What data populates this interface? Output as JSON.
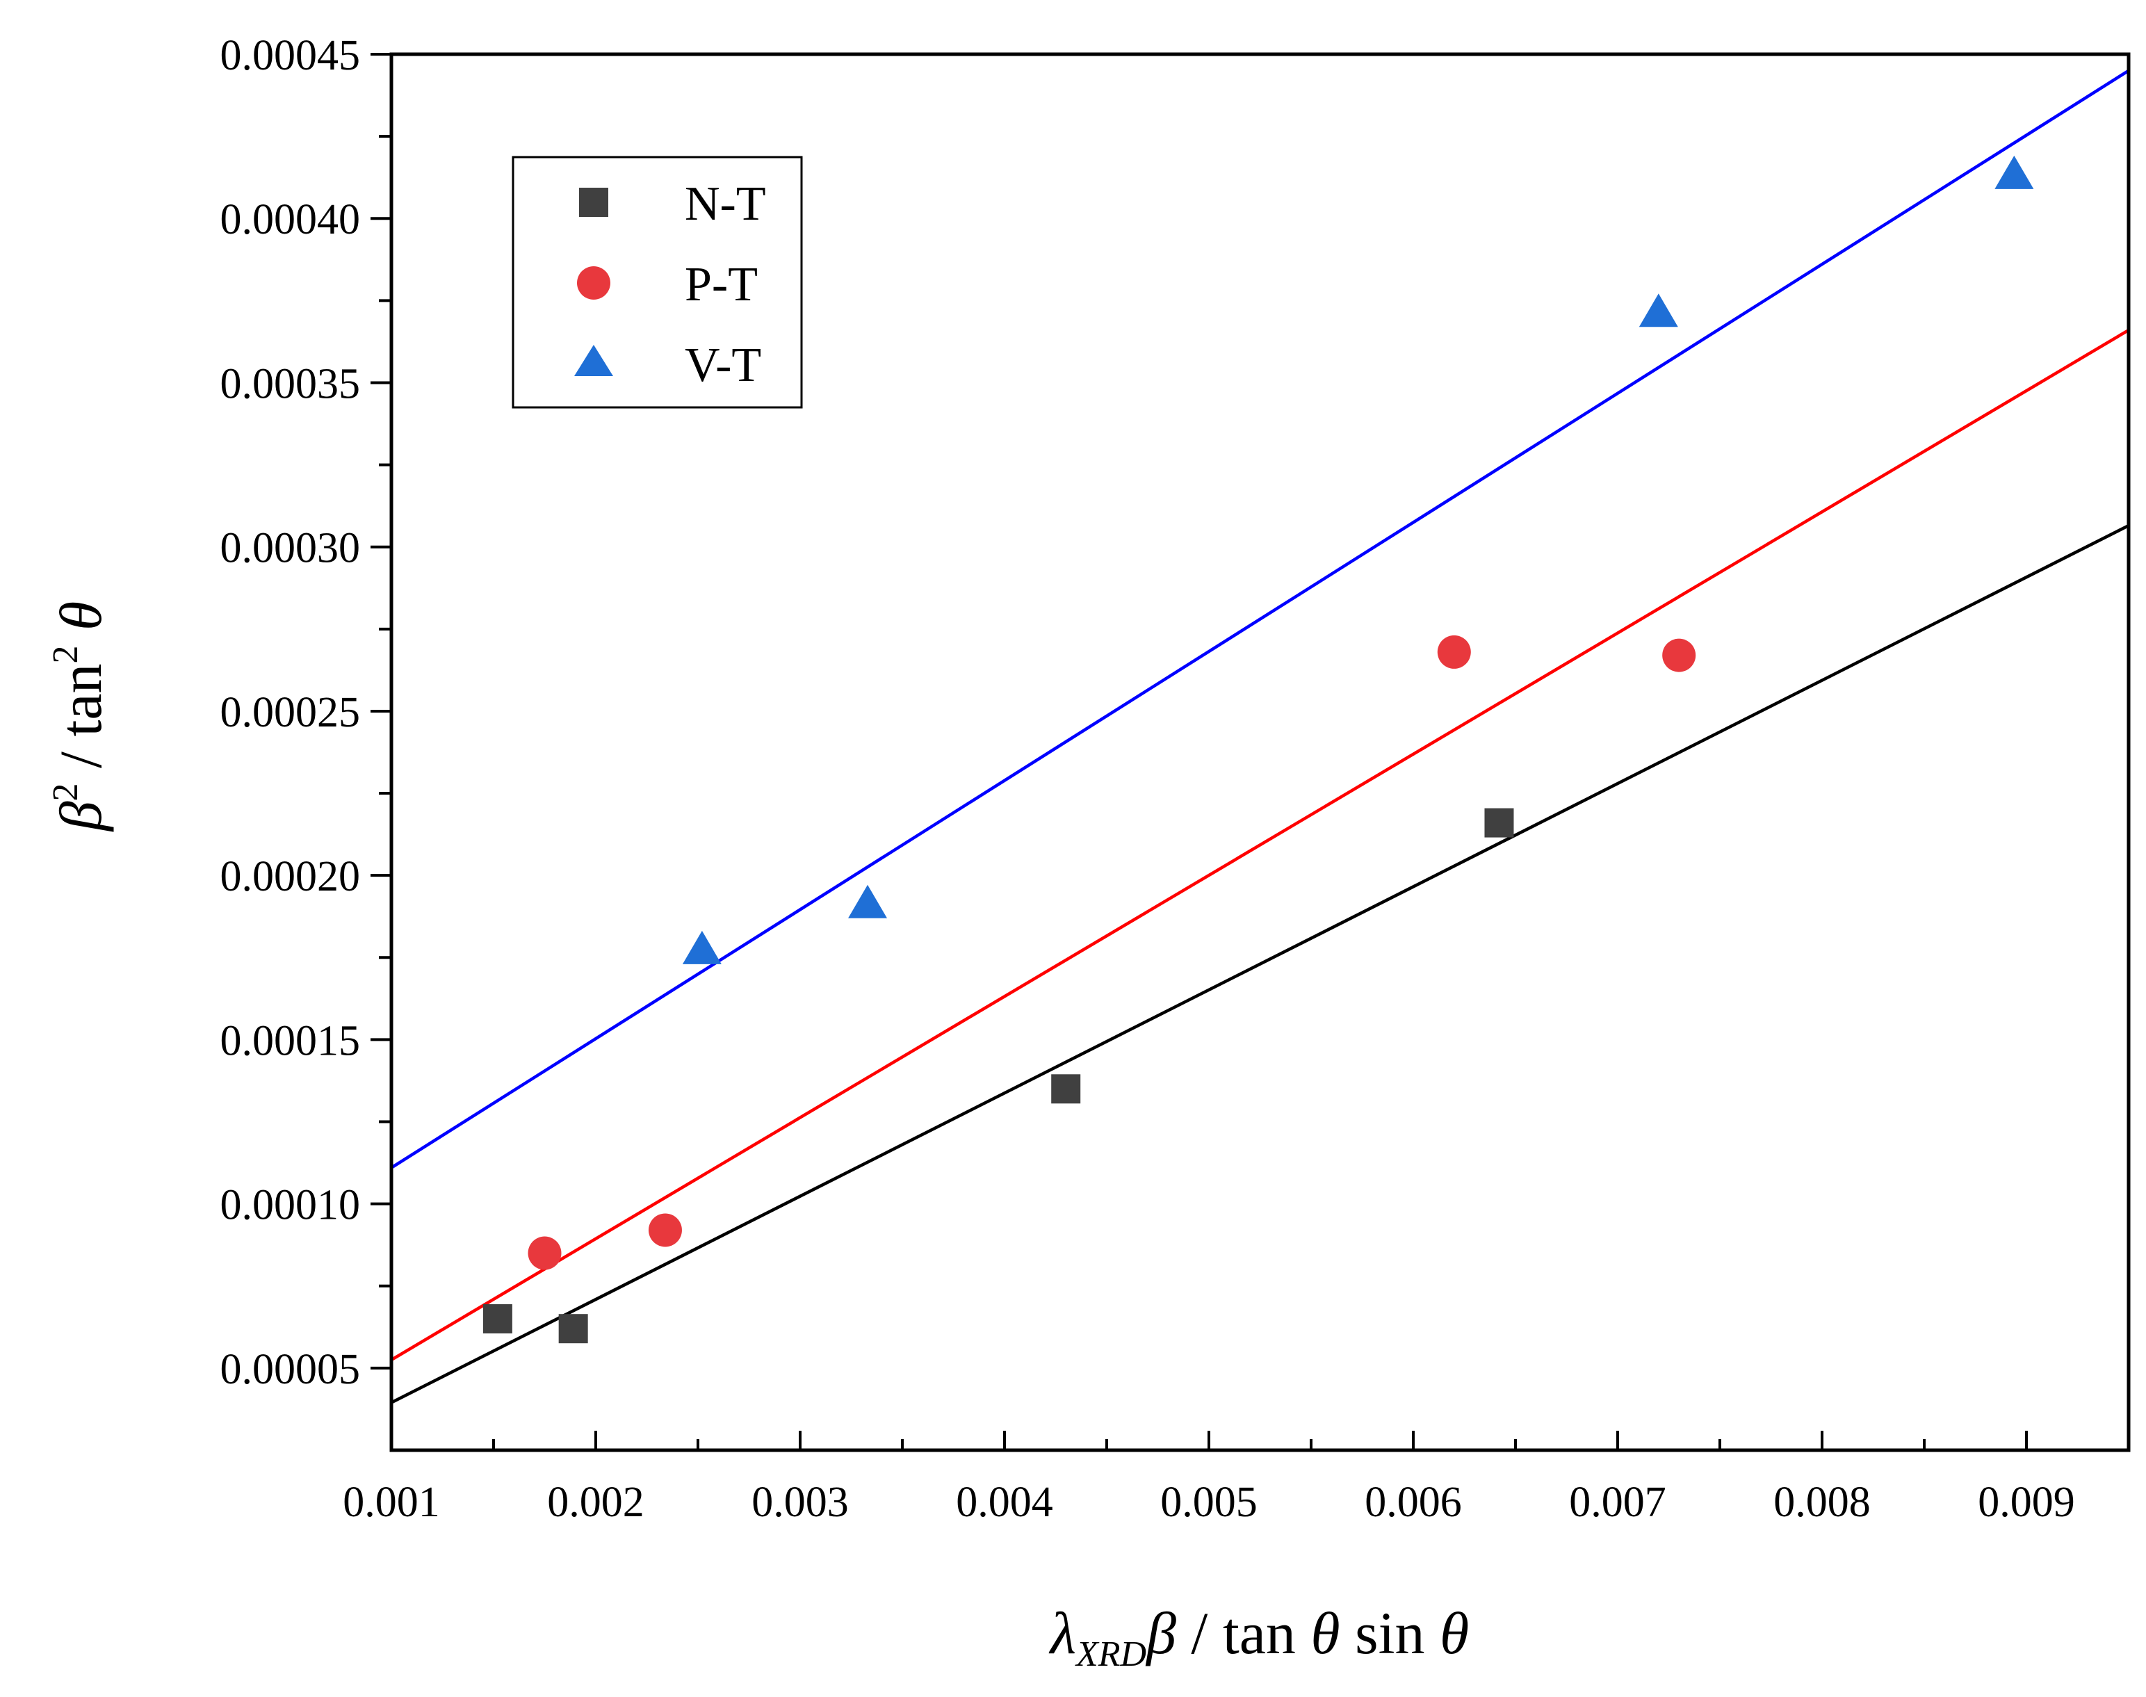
{
  "chart_data": {
    "type": "scatter",
    "title": "",
    "xlabel": {
      "parts": [
        "λ",
        "XRD",
        "β / tan θ sin θ"
      ],
      "lambda": "λ",
      "subscript": "XRD",
      "rest_beta": "β",
      "rest_mid": " / tan ",
      "theta1": "θ",
      "sin": " sin ",
      "theta2": "θ"
    },
    "ylabel": {
      "beta": "β",
      "sup1": "2",
      "mid": " / tan",
      "sup2": "2",
      "theta": " θ"
    },
    "xlim": [
      0.001,
      0.0095
    ],
    "ylim": [
      2.5e-05,
      0.00045
    ],
    "x_ticks": [
      0.001,
      0.002,
      0.003,
      0.004,
      0.005,
      0.006,
      0.007,
      0.008,
      0.009
    ],
    "x_tick_labels": [
      "0.001",
      "0.002",
      "0.003",
      "0.004",
      "0.005",
      "0.006",
      "0.007",
      "0.008",
      "0.009"
    ],
    "y_ticks": [
      5e-05,
      0.0001,
      0.00015,
      0.0002,
      0.00025,
      0.0003,
      0.00035,
      0.0004,
      0.00045
    ],
    "y_tick_labels": [
      "0.00005",
      "0.00010",
      "0.00015",
      "0.00020",
      "0.00025",
      "0.00030",
      "0.00035",
      "0.00040",
      "0.00045"
    ],
    "legend_position": "top-left",
    "series": [
      {
        "name": "N-T",
        "marker": "square",
        "color": "#404040",
        "line_color": "#000000",
        "points": [
          {
            "x": 0.00152,
            "y": 6.5e-05
          },
          {
            "x": 0.00189,
            "y": 6.2e-05
          },
          {
            "x": 0.0043,
            "y": 0.000135
          },
          {
            "x": 0.00642,
            "y": 0.000216
          }
        ],
        "fit": {
          "x": [
            0.001,
            0.0095
          ],
          "y": [
            3.95e-05,
            0.0003065
          ]
        }
      },
      {
        "name": "P-T",
        "marker": "circle",
        "color": "#e8383d",
        "line_color": "#ff0000",
        "points": [
          {
            "x": 0.00175,
            "y": 8.5e-05
          },
          {
            "x": 0.00234,
            "y": 9.2e-05
          },
          {
            "x": 0.0062,
            "y": 0.000268
          },
          {
            "x": 0.0073,
            "y": 0.000267
          }
        ],
        "fit": {
          "x": [
            0.001,
            0.0095
          ],
          "y": [
            5.25e-05,
            0.000366
          ]
        }
      },
      {
        "name": "V-T",
        "marker": "triangle",
        "color": "#1f6fd6",
        "line_color": "#0000ff",
        "points": [
          {
            "x": 0.00252,
            "y": 0.000177
          },
          {
            "x": 0.00333,
            "y": 0.000191
          },
          {
            "x": 0.0072,
            "y": 0.000371
          },
          {
            "x": 0.00894,
            "y": 0.000413
          }
        ],
        "fit": {
          "x": [
            0.001,
            0.0095
          ],
          "y": [
            0.000111,
            0.000445
          ]
        }
      }
    ]
  }
}
